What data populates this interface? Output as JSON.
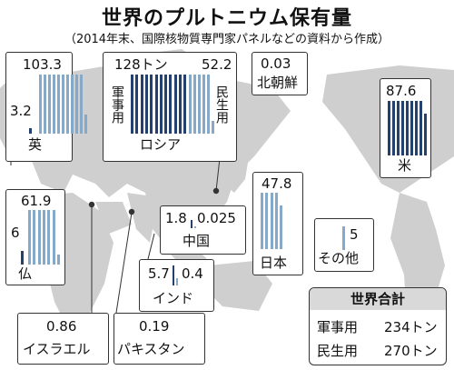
{
  "title": "世界のプルトニウム保有量",
  "subtitle": "（2014年末、国際核物質専門家パネルなどの資料から作成）",
  "colors": {
    "military": "#24406e",
    "civilian": "#86a9c7",
    "land": "#cfcfcf"
  },
  "summary": {
    "heading": "世界合計",
    "rows": [
      {
        "label": "軍事用",
        "value": "234トン"
      },
      {
        "label": "民生用",
        "value": "270トン"
      }
    ]
  },
  "chart_data": {
    "type": "bar",
    "title": "世界のプルトニウム保有量",
    "unit": "トン",
    "series_names": [
      "軍事用",
      "民生用"
    ],
    "countries": [
      {
        "name": "英",
        "military": 3.2,
        "civilian": 103.3,
        "military_label": "3.2",
        "civilian_label": "103.3"
      },
      {
        "name": "ロシア",
        "military": 128,
        "civilian": 52.2,
        "military_label": "128トン",
        "civilian_label": "52.2",
        "military_tag": "軍事用",
        "civilian_tag": "民生用"
      },
      {
        "name": "北朝鮮",
        "military": 0.03,
        "military_label": "0.03"
      },
      {
        "name": "米",
        "military": 87.6,
        "military_label": "87.6"
      },
      {
        "name": "仏",
        "military": 6,
        "civilian": 61.9,
        "military_label": "6",
        "civilian_label": "61.9"
      },
      {
        "name": "中国",
        "military": 1.8,
        "civilian": 0.025,
        "military_label": "1.8",
        "civilian_label": "0.025"
      },
      {
        "name": "日本",
        "civilian": 47.8,
        "civilian_label": "47.8"
      },
      {
        "name": "その他",
        "civilian": 5,
        "civilian_label": "5"
      },
      {
        "name": "インド",
        "military": 5.7,
        "civilian": 0.4,
        "military_label": "5.7",
        "civilian_label": "0.4"
      },
      {
        "name": "イスラエル",
        "military": 0.86,
        "military_label": "0.86"
      },
      {
        "name": "パキスタン",
        "military": 0.19,
        "military_label": "0.19"
      }
    ]
  }
}
